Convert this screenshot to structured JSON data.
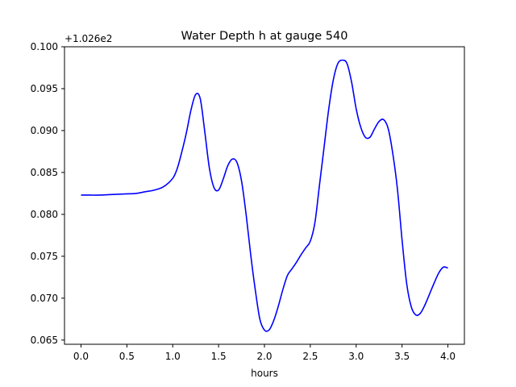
{
  "chart_data": {
    "type": "line",
    "title": "Water Depth h at gauge 540",
    "xlabel": "hours",
    "ylabel": "",
    "offset_label": "+1.026e2",
    "xlim": [
      -0.18,
      4.18
    ],
    "ylim": [
      0.0645,
      0.1
    ],
    "xticks": [
      {
        "value": 0.0,
        "label": "0.0"
      },
      {
        "value": 0.5,
        "label": "0.5"
      },
      {
        "value": 1.0,
        "label": "1.0"
      },
      {
        "value": 1.5,
        "label": "1.5"
      },
      {
        "value": 2.0,
        "label": "2.0"
      },
      {
        "value": 2.5,
        "label": "2.5"
      },
      {
        "value": 3.0,
        "label": "3.0"
      },
      {
        "value": 3.5,
        "label": "3.5"
      },
      {
        "value": 4.0,
        "label": "4.0"
      }
    ],
    "yticks": [
      {
        "value": 0.065,
        "label": "0.065"
      },
      {
        "value": 0.07,
        "label": "0.070"
      },
      {
        "value": 0.075,
        "label": "0.075"
      },
      {
        "value": 0.08,
        "label": "0.080"
      },
      {
        "value": 0.085,
        "label": "0.085"
      },
      {
        "value": 0.09,
        "label": "0.090"
      },
      {
        "value": 0.095,
        "label": "0.095"
      },
      {
        "value": 0.1,
        "label": "0.100"
      }
    ],
    "grid": false,
    "series": [
      {
        "color": "#0000ff",
        "x": [
          0.0,
          0.1,
          0.2,
          0.3,
          0.4,
          0.5,
          0.6,
          0.7,
          0.8,
          0.9,
          1.0,
          1.05,
          1.1,
          1.15,
          1.2,
          1.25,
          1.3,
          1.35,
          1.4,
          1.45,
          1.5,
          1.55,
          1.6,
          1.65,
          1.7,
          1.75,
          1.8,
          1.85,
          1.9,
          1.95,
          2.0,
          2.05,
          2.1,
          2.15,
          2.2,
          2.25,
          2.3,
          2.35,
          2.4,
          2.45,
          2.5,
          2.55,
          2.6,
          2.65,
          2.7,
          2.75,
          2.8,
          2.85,
          2.9,
          2.95,
          3.0,
          3.05,
          3.1,
          3.15,
          3.2,
          3.25,
          3.3,
          3.35,
          3.4,
          3.45,
          3.5,
          3.55,
          3.6,
          3.65,
          3.7,
          3.75,
          3.8,
          3.85,
          3.9,
          3.95,
          4.0
        ],
        "values": [
          0.0823,
          0.0823,
          0.0823,
          0.08235,
          0.0824,
          0.08245,
          0.0825,
          0.0827,
          0.0829,
          0.0833,
          0.0843,
          0.0855,
          0.0875,
          0.0898,
          0.0925,
          0.0943,
          0.0938,
          0.0898,
          0.0855,
          0.0832,
          0.0829,
          0.0842,
          0.0858,
          0.0866,
          0.0862,
          0.084,
          0.08,
          0.0752,
          0.071,
          0.0675,
          0.0662,
          0.0662,
          0.0673,
          0.069,
          0.071,
          0.0727,
          0.0735,
          0.0743,
          0.0752,
          0.076,
          0.0768,
          0.079,
          0.0835,
          0.088,
          0.0925,
          0.096,
          0.098,
          0.0984,
          0.098,
          0.0958,
          0.0926,
          0.0904,
          0.0892,
          0.0892,
          0.0902,
          0.0911,
          0.0913,
          0.0902,
          0.0872,
          0.083,
          0.077,
          0.0718,
          0.069,
          0.068,
          0.0682,
          0.0692,
          0.0705,
          0.0718,
          0.073,
          0.0737,
          0.0736
        ]
      }
    ]
  }
}
